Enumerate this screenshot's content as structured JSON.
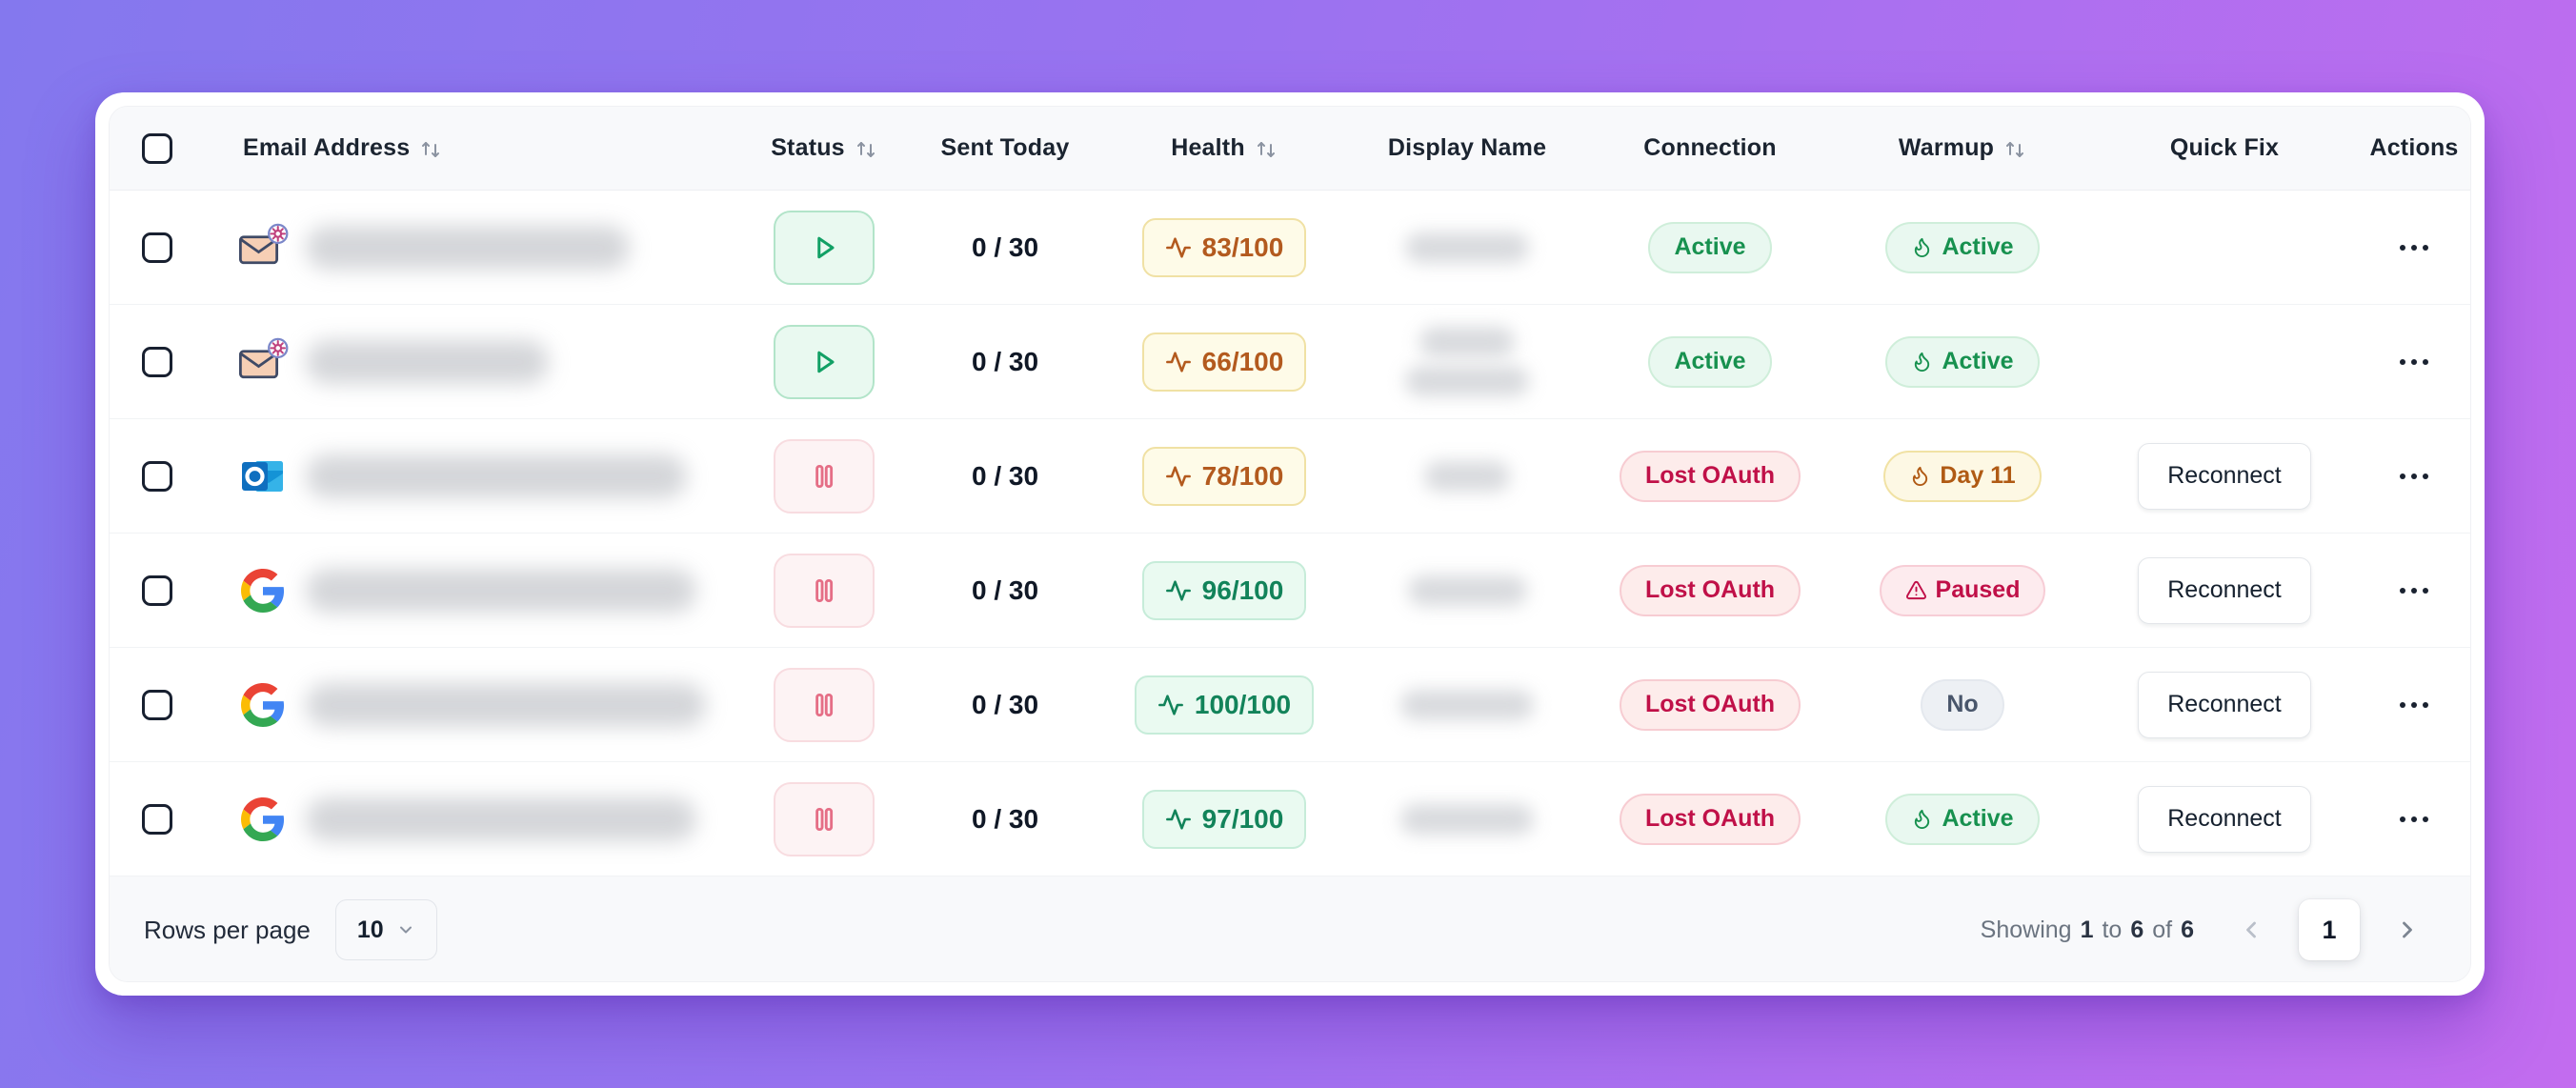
{
  "table": {
    "columns": [
      {
        "key": "email",
        "label": "Email Address",
        "sortable": true
      },
      {
        "key": "status",
        "label": "Status",
        "sortable": true
      },
      {
        "key": "sent",
        "label": "Sent Today",
        "sortable": false
      },
      {
        "key": "health",
        "label": "Health",
        "sortable": true
      },
      {
        "key": "name",
        "label": "Display Name",
        "sortable": false
      },
      {
        "key": "conn",
        "label": "Connection",
        "sortable": false
      },
      {
        "key": "warm",
        "label": "Warmup",
        "sortable": true
      },
      {
        "key": "fix",
        "label": "Quick Fix",
        "sortable": false
      },
      {
        "key": "actions",
        "label": "Actions",
        "sortable": false
      }
    ],
    "rows": [
      {
        "provider": "custom-smtp",
        "email_redacted": true,
        "email_redacted_width": 340,
        "status": "running",
        "sent": "0 / 30",
        "health": "83/100",
        "health_level": "warning",
        "name_redacted_lines": [
          130
        ],
        "connection": "Active",
        "connection_level": "active",
        "warmup": "Active",
        "warmup_level": "active",
        "warmup_icon": "flame",
        "quick_fix": ""
      },
      {
        "provider": "custom-smtp",
        "email_redacted": true,
        "email_redacted_width": 255,
        "status": "running",
        "sent": "0 / 30",
        "health": "66/100",
        "health_level": "warning",
        "name_redacted_lines": [
          100,
          130
        ],
        "connection": "Active",
        "connection_level": "active",
        "warmup": "Active",
        "warmup_level": "active",
        "warmup_icon": "flame",
        "quick_fix": ""
      },
      {
        "provider": "outlook",
        "email_redacted": true,
        "email_redacted_width": 400,
        "status": "paused",
        "sent": "0 / 30",
        "health": "78/100",
        "health_level": "warning",
        "name_redacted_lines": [
          90
        ],
        "connection": "Lost OAuth",
        "connection_level": "error",
        "warmup": "Day 11",
        "warmup_level": "warming",
        "warmup_icon": "flame",
        "quick_fix": "Reconnect"
      },
      {
        "provider": "google",
        "email_redacted": true,
        "email_redacted_width": 410,
        "status": "paused",
        "sent": "0 / 30",
        "health": "96/100",
        "health_level": "good",
        "name_redacted_lines": [
          125
        ],
        "connection": "Lost OAuth",
        "connection_level": "error",
        "warmup": "Paused",
        "warmup_level": "paused",
        "warmup_icon": "warning",
        "quick_fix": "Reconnect"
      },
      {
        "provider": "google",
        "email_redacted": true,
        "email_redacted_width": 420,
        "status": "paused",
        "sent": "0 / 30",
        "health": "100/100",
        "health_level": "good",
        "name_redacted_lines": [
          140
        ],
        "connection": "Lost OAuth",
        "connection_level": "error",
        "warmup": "No",
        "warmup_level": "none",
        "warmup_icon": "none",
        "quick_fix": "Reconnect"
      },
      {
        "provider": "google",
        "email_redacted": true,
        "email_redacted_width": 410,
        "status": "paused",
        "sent": "0 / 30",
        "health": "97/100",
        "health_level": "good",
        "name_redacted_lines": [
          140
        ],
        "connection": "Lost OAuth",
        "connection_level": "error",
        "warmup": "Active",
        "warmup_level": "active",
        "warmup_icon": "flame",
        "quick_fix": "Reconnect"
      }
    ],
    "footer": {
      "rows_per_page_label": "Rows per page",
      "rows_per_page_value": "10",
      "showing": {
        "prefix": "Showing",
        "from": "1",
        "to_word": "to",
        "to": "6",
        "of_word": "of",
        "total": "6"
      },
      "current_page": "1"
    }
  },
  "colors": {
    "background_gradient_start": "#8478ee",
    "background_gradient_end": "#c26cef",
    "success_text": "#17914f",
    "success_bg": "#e9f8f0",
    "danger_text": "#c01048",
    "danger_bg": "#fdeceb",
    "warning_text": "#b35a1e",
    "warning_bg": "#fefbe8",
    "neutral_text": "#49566b",
    "neutral_bg": "#edf0f4"
  }
}
